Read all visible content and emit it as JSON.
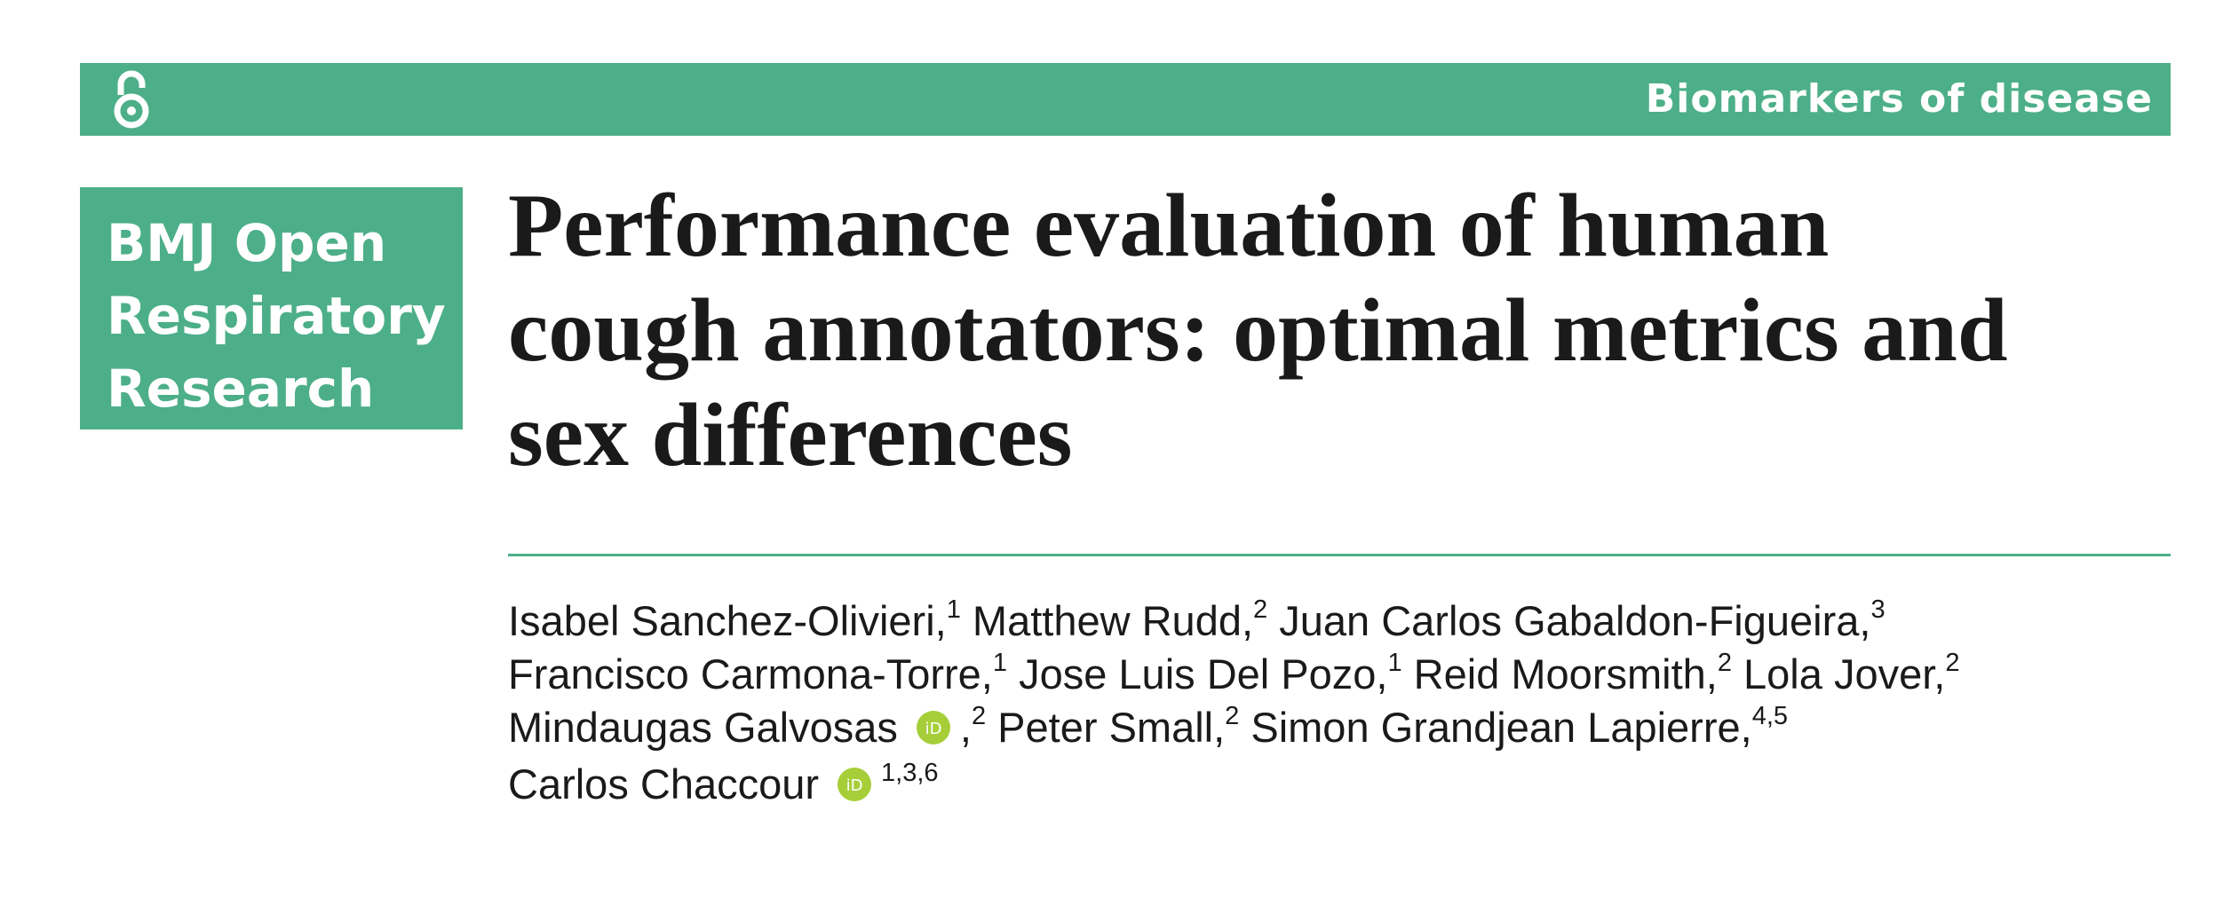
{
  "header": {
    "section": "Biomarkers of disease"
  },
  "journal": {
    "lines": [
      "BMJ Open",
      "Respiratory",
      "Research"
    ]
  },
  "title": {
    "lines": [
      "Performance evaluation of human",
      "cough annotators: optimal metrics and",
      "sex differences"
    ]
  },
  "authors": {
    "lines": [
      [
        {
          "name": "Isabel Sanchez-Olivieri,",
          "sup": "1"
        },
        {
          "name": "Matthew Rudd,",
          "sup": "2"
        },
        {
          "name": "Juan Carlos Gabaldon-Figueira,",
          "sup": "3"
        }
      ],
      [
        {
          "name": "Francisco Carmona-Torre,",
          "sup": "1"
        },
        {
          "name": "Jose Luis Del Pozo,",
          "sup": "1"
        },
        {
          "name": "Reid Moorsmith,",
          "sup": "2"
        },
        {
          "name": "Lola Jover,",
          "sup": "2"
        }
      ],
      [
        {
          "name": "Mindaugas Galvosas",
          "orcid": true,
          "after": ",",
          "sup": "2"
        },
        {
          "name": "Peter Small,",
          "sup": "2"
        },
        {
          "name": "Simon Grandjean Lapierre,",
          "sup": "4,5"
        }
      ],
      [
        {
          "name": "Carlos Chaccour",
          "orcid": true,
          "sup": "1,3,6"
        }
      ]
    ]
  }
}
